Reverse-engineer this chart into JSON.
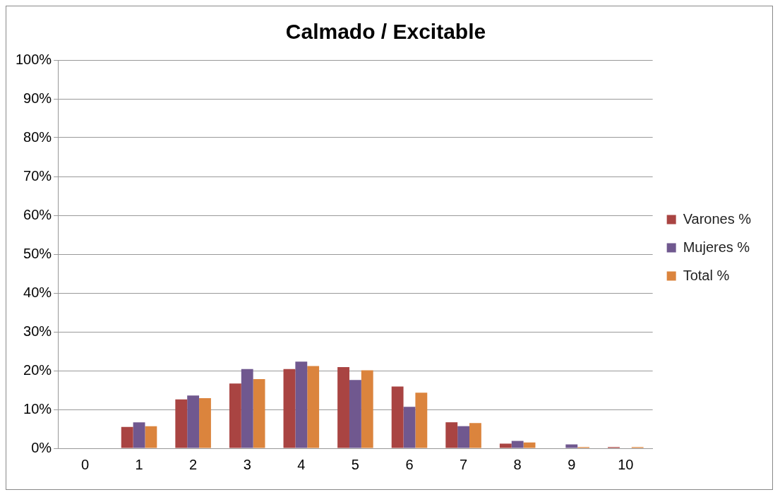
{
  "chart_data": {
    "type": "bar",
    "title": "Calmado / Excitable",
    "categories": [
      "0",
      "1",
      "2",
      "3",
      "4",
      "5",
      "6",
      "7",
      "8",
      "9",
      "10"
    ],
    "series": [
      {
        "name": "Varones %",
        "color": "#a94442",
        "values": [
          0,
          5.5,
          12.6,
          16.7,
          20.4,
          20.9,
          15.9,
          6.7,
          1.2,
          0,
          0.3
        ]
      },
      {
        "name": "Mujeres %",
        "color": "#70588f",
        "values": [
          0,
          6.7,
          13.6,
          20.4,
          22.3,
          17.6,
          10.7,
          5.7,
          1.9,
          1.0,
          0
        ]
      },
      {
        "name": "Total %",
        "color": "#db843d",
        "values": [
          0,
          5.7,
          12.9,
          17.8,
          21.2,
          20.1,
          14.3,
          6.5,
          1.5,
          0.3,
          0.3
        ]
      }
    ],
    "ylim": [
      0,
      100
    ],
    "yticks": [
      {
        "value": 0,
        "label": "0%"
      },
      {
        "value": 10,
        "label": "10%"
      },
      {
        "value": 20,
        "label": "20%"
      },
      {
        "value": 30,
        "label": "30%"
      },
      {
        "value": 40,
        "label": "40%"
      },
      {
        "value": 50,
        "label": "50%"
      },
      {
        "value": 60,
        "label": "60%"
      },
      {
        "value": 70,
        "label": "70%"
      },
      {
        "value": 80,
        "label": "80%"
      },
      {
        "value": 90,
        "label": "90%"
      },
      {
        "value": 100,
        "label": "100%"
      }
    ],
    "grid": "y",
    "legend": "right"
  }
}
